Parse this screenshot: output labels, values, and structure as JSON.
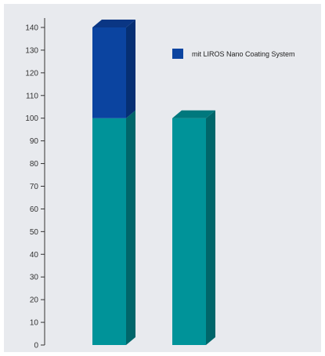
{
  "chart_data": {
    "type": "bar",
    "stacked": true,
    "style": "3d",
    "categories": [
      "",
      ""
    ],
    "series": [
      {
        "values": [
          100,
          100
        ],
        "color": "#009399"
      },
      {
        "name": "mit LIROS Nano Coating System",
        "values": [
          40,
          0
        ],
        "color": "#0b44a0"
      }
    ],
    "title": "",
    "xlabel": "",
    "ylabel": "",
    "ylim": [
      0,
      140
    ],
    "yticks": [
      0,
      10,
      20,
      30,
      40,
      50,
      60,
      70,
      80,
      90,
      100,
      110,
      120,
      130,
      140
    ],
    "grid": false,
    "legend": {
      "position": "top-right",
      "entries": [
        "mit LIROS Nano Coating System"
      ]
    }
  },
  "colors": {
    "background": "#e8eaee",
    "axis": "#333333",
    "base_side": "#00666a",
    "base_top": "#00787d",
    "top_side": "#062f73",
    "top_top": "#0a3684"
  }
}
